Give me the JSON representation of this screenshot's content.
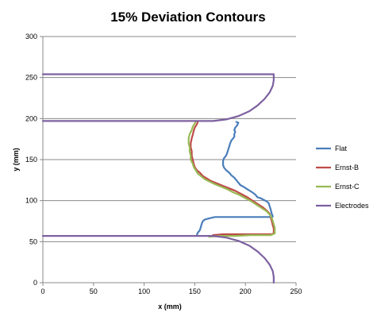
{
  "chart_data": {
    "type": "line",
    "title": "15% Deviation Contours",
    "xlabel": "x (mm)",
    "ylabel": "y (mm)",
    "xlim": [
      0,
      250
    ],
    "ylim": [
      0,
      300
    ],
    "x_ticks": [
      0,
      50,
      100,
      150,
      200,
      250
    ],
    "y_ticks": [
      0,
      50,
      100,
      150,
      200,
      250,
      300
    ],
    "grid": "horizontal",
    "legend_position": "right",
    "series": [
      {
        "name": "Flat",
        "color": "#4a7ebb",
        "points": [
          [
            152,
            58
          ],
          [
            153,
            61
          ],
          [
            155,
            64
          ],
          [
            156,
            68
          ],
          [
            157,
            72
          ],
          [
            158,
            75
          ],
          [
            160,
            77
          ],
          [
            163,
            78
          ],
          [
            166,
            79
          ],
          [
            170,
            80
          ],
          [
            175,
            80
          ],
          [
            180,
            80
          ],
          [
            186,
            80
          ],
          [
            192,
            80
          ],
          [
            198,
            80
          ],
          [
            203,
            80
          ],
          [
            209,
            80
          ],
          [
            214,
            80
          ],
          [
            220,
            80
          ],
          [
            224,
            80
          ],
          [
            226,
            79
          ],
          [
            227,
            81
          ],
          [
            226,
            84
          ],
          [
            225,
            89
          ],
          [
            224,
            93
          ],
          [
            223,
            97
          ],
          [
            221,
            99
          ],
          [
            218,
            101
          ],
          [
            215,
            103
          ],
          [
            212,
            104
          ],
          [
            210,
            107
          ],
          [
            207,
            110
          ],
          [
            203,
            113
          ],
          [
            198,
            117
          ],
          [
            195,
            119
          ],
          [
            193,
            122
          ],
          [
            191,
            125
          ],
          [
            189,
            128
          ],
          [
            186,
            131
          ],
          [
            184,
            134
          ],
          [
            181,
            137
          ],
          [
            179,
            140
          ],
          [
            178,
            143
          ],
          [
            178,
            146
          ],
          [
            178,
            149
          ],
          [
            179,
            152
          ],
          [
            181,
            155
          ],
          [
            182,
            158
          ],
          [
            183,
            162
          ],
          [
            184,
            166
          ],
          [
            185,
            170
          ],
          [
            186,
            173
          ],
          [
            188,
            176
          ],
          [
            189,
            178
          ],
          [
            189,
            181
          ],
          [
            190,
            184
          ],
          [
            189,
            186
          ],
          [
            190,
            189
          ],
          [
            192,
            192
          ],
          [
            193,
            195
          ],
          [
            191,
            196
          ]
        ]
      },
      {
        "name": "Ernst-B",
        "color": "#be4b48",
        "points": [
          [
            168,
            58
          ],
          [
            178,
            59
          ],
          [
            192,
            59
          ],
          [
            206,
            59
          ],
          [
            218,
            59
          ],
          [
            227,
            59
          ],
          [
            228,
            61
          ],
          [
            228,
            64
          ],
          [
            228,
            66
          ],
          [
            227,
            70
          ],
          [
            226,
            75
          ],
          [
            225,
            80
          ],
          [
            224,
            84
          ],
          [
            221,
            88
          ],
          [
            217,
            92
          ],
          [
            212,
            96
          ],
          [
            207,
            100
          ],
          [
            202,
            104
          ],
          [
            196,
            108
          ],
          [
            190,
            112
          ],
          [
            184,
            115
          ],
          [
            178,
            118
          ],
          [
            172,
            121
          ],
          [
            166,
            124
          ],
          [
            162,
            127
          ],
          [
            158,
            130
          ],
          [
            155,
            134
          ],
          [
            152,
            137
          ],
          [
            150,
            141
          ],
          [
            149,
            145
          ],
          [
            148,
            150
          ],
          [
            147,
            155
          ],
          [
            147,
            160
          ],
          [
            146,
            165
          ],
          [
            146,
            170
          ],
          [
            147,
            176
          ],
          [
            148,
            180
          ],
          [
            149,
            185
          ],
          [
            150,
            189
          ],
          [
            152,
            193
          ],
          [
            153,
            196
          ]
        ]
      },
      {
        "name": "Ernst-C",
        "color": "#98b954",
        "points": [
          [
            164,
            56
          ],
          [
            175,
            57
          ],
          [
            190,
            57
          ],
          [
            205,
            58
          ],
          [
            218,
            58
          ],
          [
            225,
            58
          ],
          [
            229,
            60
          ],
          [
            229,
            63
          ],
          [
            229,
            67
          ],
          [
            228,
            71
          ],
          [
            227,
            75
          ],
          [
            226,
            79
          ],
          [
            224,
            83
          ],
          [
            221,
            87
          ],
          [
            216,
            91
          ],
          [
            211,
            95
          ],
          [
            206,
            99
          ],
          [
            200,
            103
          ],
          [
            194,
            107
          ],
          [
            188,
            110
          ],
          [
            182,
            114
          ],
          [
            176,
            117
          ],
          [
            170,
            120
          ],
          [
            165,
            123
          ],
          [
            160,
            126
          ],
          [
            156,
            130
          ],
          [
            153,
            133
          ],
          [
            151,
            137
          ],
          [
            149,
            141
          ],
          [
            148,
            145
          ],
          [
            146,
            150
          ],
          [
            146,
            155
          ],
          [
            145,
            160
          ],
          [
            145,
            165
          ],
          [
            144,
            170
          ],
          [
            144,
            176
          ],
          [
            145,
            181
          ],
          [
            147,
            186
          ],
          [
            148,
            190
          ],
          [
            150,
            194
          ],
          [
            151,
            197
          ]
        ]
      },
      {
        "name": "Electrodes",
        "color": "#7d60a0",
        "points": [
          [
            0,
            254
          ],
          [
            228,
            254
          ],
          [
            228,
            247
          ],
          [
            227,
            240
          ],
          [
            224,
            232
          ],
          [
            219,
            224
          ],
          [
            212,
            216
          ],
          [
            204,
            209
          ],
          [
            193,
            203
          ],
          [
            181,
            199
          ],
          [
            168,
            197
          ],
          [
            0,
            197
          ],
          null,
          [
            0,
            57
          ],
          [
            168,
            57
          ],
          [
            181,
            55
          ],
          [
            193,
            51
          ],
          [
            204,
            45
          ],
          [
            212,
            38
          ],
          [
            219,
            30
          ],
          [
            224,
            22
          ],
          [
            227,
            14
          ],
          [
            228,
            7
          ],
          [
            228,
            0
          ]
        ]
      }
    ]
  }
}
